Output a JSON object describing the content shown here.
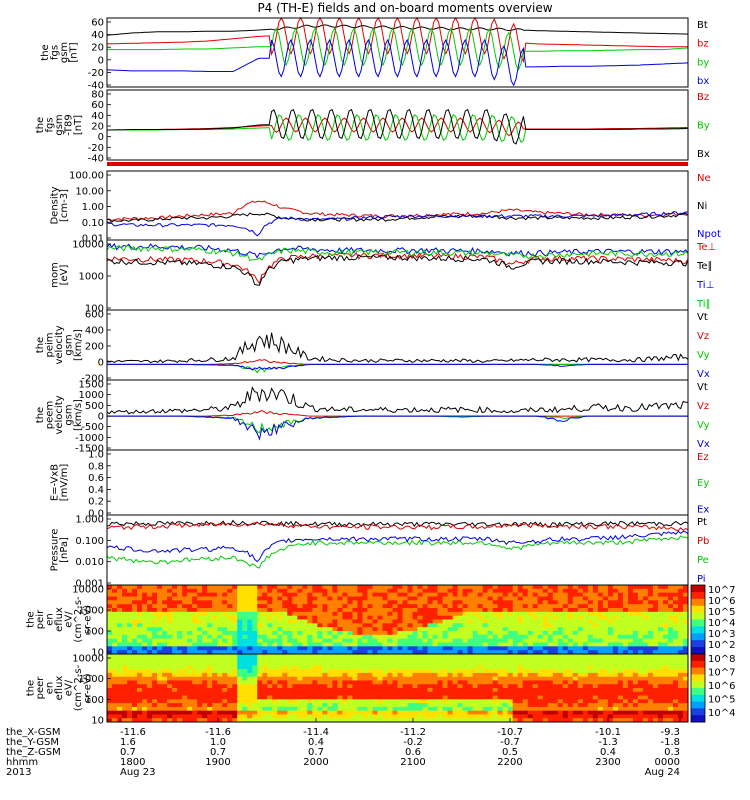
{
  "title": "P4 (TH-E) fields and on-board moments overview",
  "colors": {
    "black": "#000000",
    "red": "#e00000",
    "green": "#00cc00",
    "blue": "#0000e0",
    "frame": "#000000"
  },
  "chart_data": [
    {
      "id": "fgs",
      "type": "line",
      "ylabel": [
        "the",
        "fgs",
        "gsm",
        "[nT]"
      ],
      "ylim": [
        -60,
        60
      ],
      "yticks": [
        "60",
        "40",
        "20",
        "0",
        "-20",
        "-40"
      ],
      "series": [
        {
          "name": "Bt",
          "color": "#000000",
          "values": [
            30,
            34,
            36,
            36,
            37,
            37,
            39,
            42,
            46,
            46,
            45,
            44,
            43,
            42,
            41,
            41,
            40,
            38,
            37,
            36,
            35,
            34,
            33,
            32
          ]
        },
        {
          "name": "bz",
          "color": "#e00000",
          "values": [
            15,
            16,
            17,
            18,
            20,
            24,
            28,
            30,
            30,
            30,
            30,
            30,
            30,
            30,
            30,
            30,
            18,
            15,
            14,
            13,
            12,
            11,
            10,
            10
          ]
        },
        {
          "name": "by",
          "color": "#00cc00",
          "values": [
            5,
            5,
            5,
            6,
            6,
            8,
            10,
            10,
            10,
            10,
            10,
            10,
            10,
            10,
            10,
            10,
            2,
            2,
            3,
            3,
            4,
            5,
            5,
            8
          ]
        },
        {
          "name": "bx",
          "color": "#0000e0",
          "values": [
            -30,
            -32,
            -32,
            -32,
            -33,
            -33,
            -10,
            -10,
            -10,
            -10,
            -10,
            -10,
            -10,
            -10,
            -10,
            -10,
            -25,
            -25,
            -24,
            -24,
            -23,
            -22,
            -20,
            -18
          ]
        }
      ]
    },
    {
      "id": "fgs-dsl",
      "type": "line",
      "ylabel": [
        "the",
        "fgs",
        "gsm",
        "-T89",
        "[nT]"
      ],
      "ylim": [
        -60,
        80
      ],
      "yticks": [
        "80",
        "60",
        "40",
        "20",
        "0",
        "-20",
        "-40"
      ],
      "series": [
        {
          "name": "Bz",
          "color": "#e00000",
          "values": [
            0,
            0,
            1,
            2,
            3,
            5,
            8,
            10,
            10,
            10,
            10,
            10,
            10,
            10,
            10,
            10,
            2,
            2,
            2,
            2,
            3,
            3,
            4,
            5
          ]
        },
        {
          "name": "By",
          "color": "#00cc00",
          "values": [
            0,
            0,
            0,
            1,
            1,
            2,
            4,
            5,
            5,
            5,
            5,
            5,
            5,
            5,
            5,
            5,
            1,
            1,
            1,
            1,
            1,
            2,
            2,
            3
          ]
        },
        {
          "name": "Bx",
          "color": "#000000",
          "values": [
            0,
            1,
            1,
            1,
            2,
            4,
            10,
            12,
            12,
            12,
            12,
            12,
            12,
            12,
            12,
            12,
            1,
            1,
            1,
            1,
            1,
            2,
            2,
            3
          ]
        }
      ]
    },
    {
      "id": "density",
      "type": "line",
      "ylabel": [
        "Density",
        "[cm-3]"
      ],
      "ylim": [
        0.005,
        200
      ],
      "yticks": [
        "100.00",
        "10.00",
        "1.00",
        "0.10",
        "0.01"
      ],
      "series": [
        {
          "name": "Ne",
          "color": "#e00000",
          "values": [
            0.12,
            0.14,
            0.15,
            0.2,
            0.25,
            0.3,
            2.0,
            0.6,
            0.3,
            0.25,
            0.22,
            0.2,
            0.22,
            0.25,
            0.28,
            0.3,
            0.5,
            0.35,
            0.3,
            0.25,
            0.25,
            0.22,
            0.25,
            0.3
          ]
        },
        {
          "name": "Ni",
          "color": "#000000",
          "values": [
            0.1,
            0.1,
            0.12,
            0.15,
            0.15,
            0.2,
            0.3,
            0.15,
            0.12,
            0.12,
            0.12,
            0.12,
            0.15,
            0.18,
            0.2,
            0.2,
            0.15,
            0.15,
            0.15,
            0.15,
            0.15,
            0.18,
            0.2,
            0.25
          ]
        },
        {
          "name": "Npot",
          "color": "#0000e0",
          "values": [
            0.06,
            0.05,
            0.05,
            0.05,
            0.05,
            0.05,
            0.01,
            0.15,
            0.12,
            0.12,
            0.15,
            0.18,
            0.2,
            0.2,
            0.2,
            0.2,
            0.2,
            0.2,
            0.2,
            0.2,
            0.22,
            0.25,
            0.3,
            0.35
          ]
        }
      ]
    },
    {
      "id": "temperature",
      "type": "line",
      "ylabel": [
        "mom",
        "[eV]"
      ],
      "ylim": [
        30,
        12000
      ],
      "yticks": [
        "10000",
        "1000",
        "100"
      ],
      "series": [
        {
          "name": "Te⊥",
          "color": "#e00000",
          "values": [
            2500,
            2400,
            2300,
            2200,
            2000,
            1500,
            300,
            2500,
            3000,
            3200,
            3200,
            3200,
            3200,
            3000,
            3000,
            2800,
            1500,
            2500,
            2500,
            2500,
            2400,
            2300,
            2200,
            2000
          ]
        },
        {
          "name": "Te∥",
          "color": "#000000",
          "values": [
            2000,
            1900,
            1800,
            1700,
            1500,
            1200,
            200,
            2000,
            2500,
            2700,
            2700,
            2700,
            2700,
            2500,
            2500,
            2300,
            1200,
            2000,
            2000,
            2000,
            1900,
            1800,
            1800,
            1700
          ]
        },
        {
          "name": "Ti⊥",
          "color": "#0000e0",
          "values": [
            7000,
            7000,
            7000,
            6500,
            6000,
            5000,
            3000,
            6000,
            5500,
            5000,
            5000,
            5000,
            5000,
            5000,
            4800,
            4800,
            4000,
            4000,
            4200,
            4500,
            4500,
            4500,
            4500,
            4500
          ]
        },
        {
          "name": "Ti∥",
          "color": "#00cc00",
          "values": [
            6000,
            6000,
            6000,
            5500,
            5000,
            4000,
            2000,
            5000,
            4500,
            4200,
            4200,
            4200,
            4200,
            4200,
            4000,
            4000,
            3200,
            3200,
            3500,
            3800,
            3800,
            3800,
            3800,
            3800
          ]
        }
      ]
    },
    {
      "id": "velocity-esa",
      "type": "line",
      "ylabel": [
        "the",
        "peim",
        "velocity",
        "gsm",
        "[km/s]"
      ],
      "ylim": [
        -200,
        700
      ],
      "yticks": [
        "600",
        "400",
        "200",
        "0",
        "-200"
      ],
      "series": [
        {
          "name": "Vt",
          "color": "#000000",
          "values": [
            40,
            40,
            40,
            50,
            60,
            80,
            350,
            250,
            80,
            60,
            50,
            50,
            50,
            50,
            50,
            40,
            50,
            60,
            60,
            60,
            60,
            60,
            80,
            100
          ]
        },
        {
          "name": "Vz",
          "color": "#e00000",
          "values": [
            0,
            0,
            0,
            0,
            0,
            10,
            50,
            20,
            0,
            0,
            0,
            0,
            0,
            0,
            0,
            0,
            0,
            0,
            0,
            0,
            0,
            0,
            0,
            0
          ]
        },
        {
          "name": "Vy",
          "color": "#00cc00",
          "values": [
            0,
            0,
            0,
            0,
            -5,
            -10,
            -80,
            -30,
            0,
            0,
            0,
            0,
            0,
            0,
            0,
            0,
            0,
            0,
            0,
            0,
            0,
            0,
            0,
            0
          ]
        },
        {
          "name": "Vx",
          "color": "#0000e0",
          "values": [
            0,
            0,
            0,
            0,
            -5,
            -10,
            -60,
            -40,
            0,
            0,
            0,
            0,
            0,
            0,
            0,
            0,
            0,
            0,
            -20,
            0,
            0,
            0,
            0,
            0
          ]
        }
      ]
    },
    {
      "id": "velocity-peem",
      "type": "line",
      "ylabel": [
        "the",
        "peem",
        "velocity",
        "gsm",
        "[km/s]"
      ],
      "ylim": [
        -1600,
        1700
      ],
      "yticks": [
        "1500",
        "1000",
        "500",
        "0",
        "-500",
        "-1000",
        "-1500"
      ],
      "series": [
        {
          "name": "Vt",
          "color": "#000000",
          "values": [
            200,
            200,
            250,
            250,
            300,
            400,
            1200,
            1000,
            400,
            300,
            300,
            300,
            300,
            300,
            300,
            300,
            200,
            300,
            300,
            400,
            400,
            400,
            450,
            500
          ]
        },
        {
          "name": "Vz",
          "color": "#e00000",
          "values": [
            0,
            0,
            0,
            0,
            0,
            50,
            200,
            100,
            0,
            0,
            0,
            0,
            0,
            0,
            0,
            0,
            0,
            0,
            0,
            0,
            0,
            0,
            0,
            0
          ]
        },
        {
          "name": "Vy",
          "color": "#00cc00",
          "values": [
            0,
            0,
            0,
            0,
            -50,
            -100,
            -600,
            -400,
            -100,
            -50,
            0,
            0,
            0,
            0,
            -50,
            0,
            0,
            0,
            -100,
            0,
            0,
            0,
            0,
            0
          ]
        },
        {
          "name": "Vx",
          "color": "#0000e0",
          "values": [
            0,
            0,
            0,
            0,
            -50,
            -100,
            -800,
            -500,
            -100,
            -50,
            0,
            0,
            0,
            0,
            0,
            0,
            0,
            0,
            -200,
            0,
            0,
            0,
            0,
            0
          ]
        }
      ]
    },
    {
      "id": "efield",
      "type": "line",
      "ylabel": [
        "E=-VxB",
        "[mV/m]"
      ],
      "ylim": [
        0,
        1
      ],
      "yticks": [
        "1.0",
        "0.8",
        "0.6",
        "0.4",
        "0.2",
        "0.0"
      ],
      "series": [
        {
          "name": "Ez",
          "color": "#e00000",
          "values": []
        },
        {
          "name": "Ey",
          "color": "#00cc00",
          "values": []
        },
        {
          "name": "Ex",
          "color": "#0000e0",
          "values": []
        }
      ]
    },
    {
      "id": "pressure",
      "type": "line",
      "ylabel": [
        "Pressure",
        "[nPa]"
      ],
      "ylim": [
        0.001,
        2
      ],
      "yticks": [
        "1.000",
        "0.100",
        "0.010",
        "0.001"
      ],
      "series": [
        {
          "name": "Pt",
          "color": "#000000",
          "values": [
            0.8,
            0.8,
            0.8,
            0.8,
            0.85,
            0.9,
            0.9,
            0.8,
            0.75,
            0.75,
            0.75,
            0.75,
            0.75,
            0.75,
            0.75,
            0.75,
            0.75,
            0.75,
            0.75,
            0.75,
            0.8,
            0.8,
            0.8,
            0.8
          ]
        },
        {
          "name": "Pb",
          "color": "#e00000",
          "values": [
            0.5,
            0.55,
            0.6,
            0.65,
            0.7,
            0.75,
            0.8,
            0.7,
            0.6,
            0.55,
            0.55,
            0.55,
            0.55,
            0.55,
            0.55,
            0.55,
            0.7,
            0.65,
            0.6,
            0.6,
            0.58,
            0.55,
            0.5,
            0.45
          ]
        },
        {
          "name": "Pe",
          "color": "#00cc00",
          "values": [
            0.02,
            0.015,
            0.012,
            0.015,
            0.018,
            0.02,
            0.005,
            0.05,
            0.1,
            0.1,
            0.1,
            0.1,
            0.1,
            0.1,
            0.1,
            0.1,
            0.05,
            0.08,
            0.1,
            0.1,
            0.1,
            0.12,
            0.15,
            0.2
          ]
        },
        {
          "name": "Pi",
          "color": "#0000e0",
          "values": [
            0.06,
            0.05,
            0.04,
            0.045,
            0.05,
            0.06,
            0.01,
            0.12,
            0.15,
            0.15,
            0.15,
            0.15,
            0.15,
            0.15,
            0.15,
            0.15,
            0.1,
            0.12,
            0.15,
            0.15,
            0.18,
            0.2,
            0.25,
            0.3
          ]
        }
      ]
    },
    {
      "id": "peir",
      "type": "heatmap",
      "ylabel": [
        "the",
        "peir",
        "en",
        "eflux",
        "eV/",
        "(cm^2-s-",
        "sr-eV)"
      ],
      "ylim": [
        8,
        20000
      ],
      "yticks": [
        "10000",
        "1000",
        "100",
        "10"
      ],
      "colorbar_labels": [
        "10^7",
        "10^6",
        "10^5",
        "10^4",
        "10^3",
        "10^2"
      ]
    },
    {
      "id": "peer",
      "type": "heatmap",
      "ylabel": [
        "the",
        "peer",
        "en",
        "eflux",
        "eV/",
        "(cm^2-s-",
        "sr-eV)"
      ],
      "ylim": [
        8,
        20000
      ],
      "yticks": [
        "10000",
        "1000",
        "100",
        "10"
      ],
      "colorbar_labels": [
        "10^8",
        "10^7",
        "10^6",
        "10^5",
        "10^4"
      ]
    }
  ],
  "xaxis": {
    "rows": [
      {
        "label": "the_X-GSM",
        "values": [
          "-11.6",
          "-11.6",
          "-11.4",
          "-11.2",
          "-10.7",
          "-10.1",
          "-9.3"
        ]
      },
      {
        "label": "the_Y-GSM",
        "values": [
          "1.6",
          "1.0",
          "0.4",
          "-0.2",
          "-0.7",
          "-1.3",
          "-1.8"
        ]
      },
      {
        "label": "the_Z-GSM",
        "values": [
          "0.7",
          "0.7",
          "0.7",
          "0.6",
          "0.5",
          "0.4",
          "0.3"
        ]
      },
      {
        "label": "hhmm",
        "values": [
          "1800",
          "1900",
          "2000",
          "2100",
          "2200",
          "2300",
          "0000"
        ]
      },
      {
        "label": "2013",
        "values": [
          "Aug 23",
          "",
          "",
          "",
          "",
          "",
          "Aug 24"
        ]
      }
    ]
  }
}
